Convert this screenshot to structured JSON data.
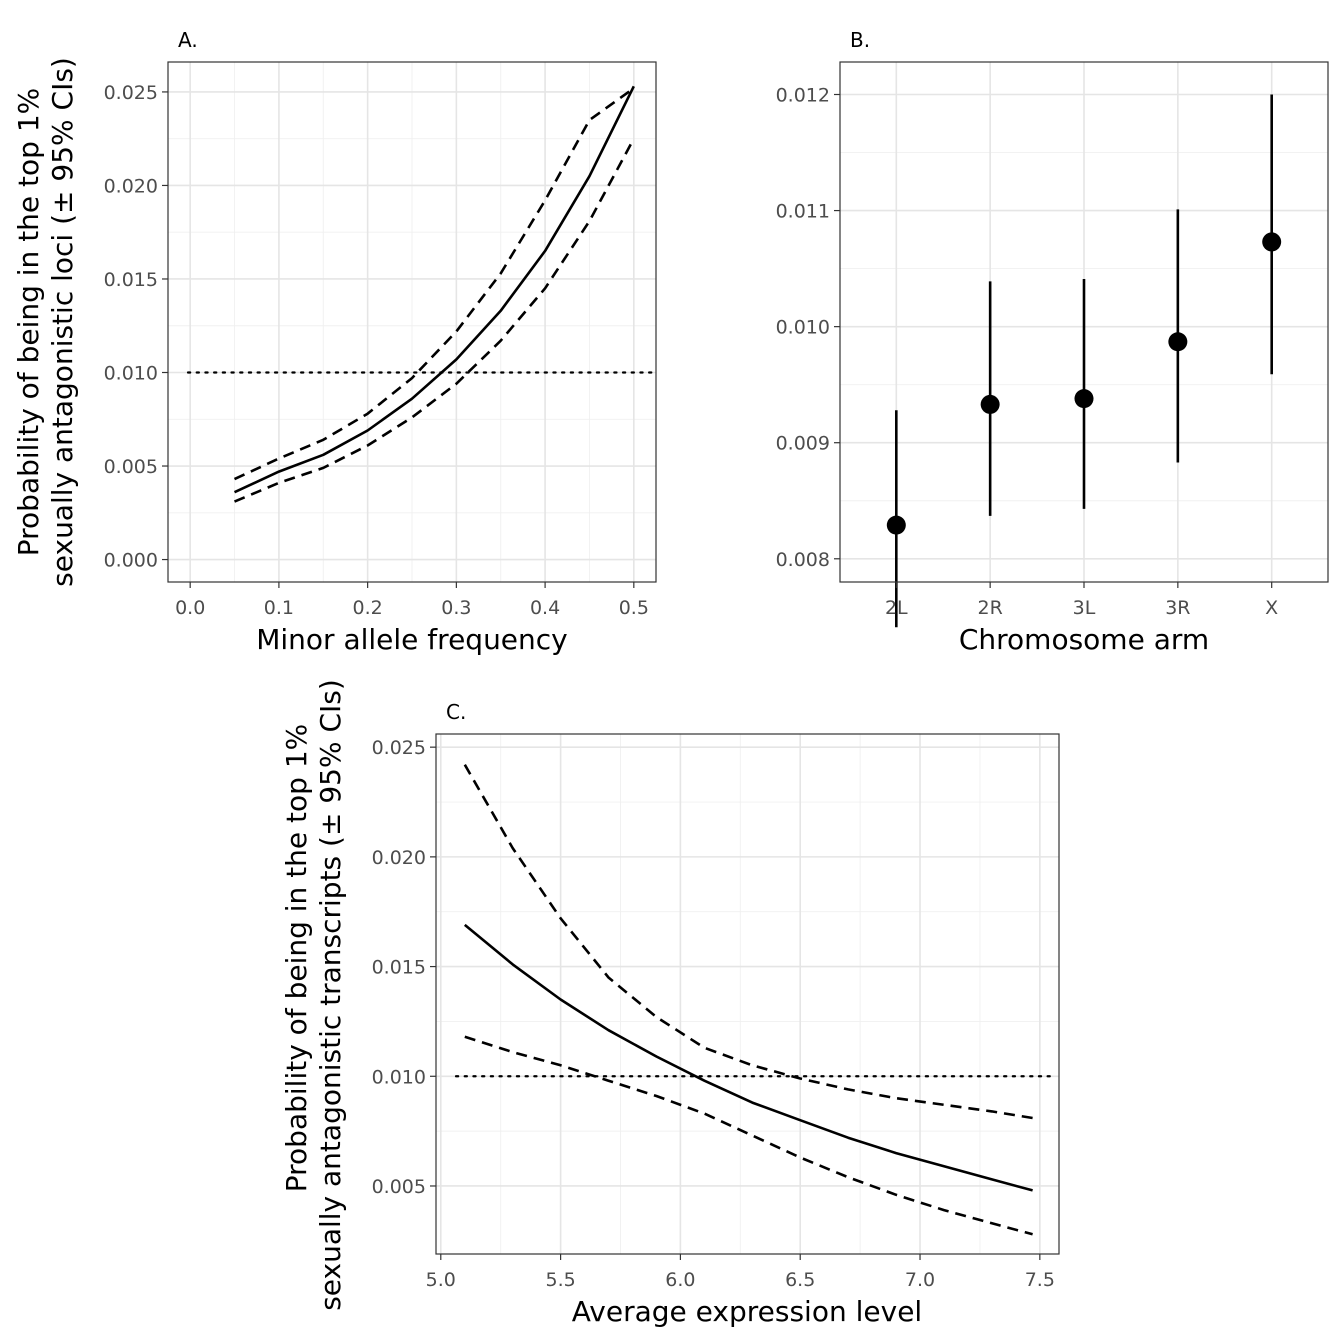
{
  "chart_data": [
    {
      "id": "A",
      "type": "line",
      "tag": "A.",
      "xlabel": "Minor allele frequency",
      "ylabel_lines": [
        "Probability of being in the top 1%",
        "sexually antagonistic loci (± 95% CIs)"
      ],
      "xlim": [
        -0.025,
        0.525
      ],
      "ylim": [
        -0.0012,
        0.0266
      ],
      "xticks": [
        0.0,
        0.1,
        0.2,
        0.3,
        0.4,
        0.5
      ],
      "xtick_labels": [
        "0.0",
        "0.1",
        "0.2",
        "0.3",
        "0.4",
        "0.5"
      ],
      "yticks": [
        0.0,
        0.005,
        0.01,
        0.015,
        0.02,
        0.025
      ],
      "ytick_labels": [
        "0.000",
        "0.005",
        "0.010",
        "0.015",
        "0.020",
        "0.025"
      ],
      "reference_line": 0.01,
      "x": [
        0.05,
        0.1,
        0.15,
        0.2,
        0.25,
        0.3,
        0.35,
        0.4,
        0.45,
        0.5
      ],
      "series": [
        {
          "name": "fit",
          "style": "solid",
          "values": [
            0.0036,
            0.0047,
            0.0056,
            0.0069,
            0.0086,
            0.0107,
            0.0133,
            0.0165,
            0.0205,
            0.0253
          ]
        },
        {
          "name": "upper 95% CI",
          "style": "dashed",
          "values": [
            0.0043,
            0.0054,
            0.0064,
            0.0078,
            0.0097,
            0.0122,
            0.0153,
            0.0192,
            0.0235,
            0.0252
          ]
        },
        {
          "name": "lower 95% CI",
          "style": "dashed",
          "values": [
            0.0031,
            0.0041,
            0.0049,
            0.0061,
            0.0076,
            0.0094,
            0.0117,
            0.0145,
            0.0181,
            0.0225
          ]
        }
      ]
    },
    {
      "id": "B",
      "type": "scatter",
      "tag": "B.",
      "xlabel": "Chromosome arm",
      "ylim": [
        0.0078,
        0.01228
      ],
      "categories": [
        "2L",
        "2R",
        "3L",
        "3R",
        "X"
      ],
      "yticks": [
        0.008,
        0.009,
        0.01,
        0.011,
        0.012
      ],
      "ytick_labels": [
        "0.008",
        "0.009",
        "0.010",
        "0.011",
        "0.012"
      ],
      "values": [
        0.00829,
        0.00933,
        0.00938,
        0.00987,
        0.01073
      ],
      "lower": [
        0.00741,
        0.00837,
        0.00843,
        0.00883,
        0.00959
      ],
      "upper": [
        0.00928,
        0.01039,
        0.01041,
        0.01101,
        0.012
      ]
    },
    {
      "id": "C",
      "type": "line",
      "tag": "C.",
      "xlabel": "Average expression level",
      "ylabel_lines": [
        "Probability of being in the top 1%",
        "sexually antagonistic transcripts (± 95% CIs)"
      ],
      "xlim": [
        4.98,
        7.58
      ],
      "ylim": [
        0.0019,
        0.0256
      ],
      "xticks": [
        5.0,
        5.5,
        6.0,
        6.5,
        7.0,
        7.5
      ],
      "xtick_labels": [
        "5.0",
        "5.5",
        "6.0",
        "6.5",
        "7.0",
        "7.5"
      ],
      "yticks": [
        0.005,
        0.01,
        0.015,
        0.02,
        0.025
      ],
      "ytick_labels": [
        "0.005",
        "0.010",
        "0.015",
        "0.020",
        "0.025"
      ],
      "reference_line": 0.01,
      "x": [
        5.1,
        5.3,
        5.5,
        5.7,
        5.9,
        6.1,
        6.3,
        6.5,
        6.7,
        6.9,
        7.1,
        7.3,
        7.47
      ],
      "series": [
        {
          "name": "fit",
          "style": "solid",
          "values": [
            0.0169,
            0.0151,
            0.0135,
            0.0121,
            0.0109,
            0.0098,
            0.0088,
            0.008,
            0.0072,
            0.0065,
            0.0059,
            0.0053,
            0.0048
          ]
        },
        {
          "name": "upper 95% CI",
          "style": "dashed",
          "values": [
            0.0242,
            0.0204,
            0.0172,
            0.0145,
            0.0127,
            0.0113,
            0.0105,
            0.0099,
            0.0094,
            0.009,
            0.0087,
            0.0084,
            0.0081
          ]
        },
        {
          "name": "lower 95% CI",
          "style": "dashed",
          "values": [
            0.0118,
            0.0111,
            0.0105,
            0.0098,
            0.0091,
            0.0083,
            0.0073,
            0.0063,
            0.0054,
            0.0046,
            0.0039,
            0.0033,
            0.0028
          ]
        }
      ]
    }
  ]
}
